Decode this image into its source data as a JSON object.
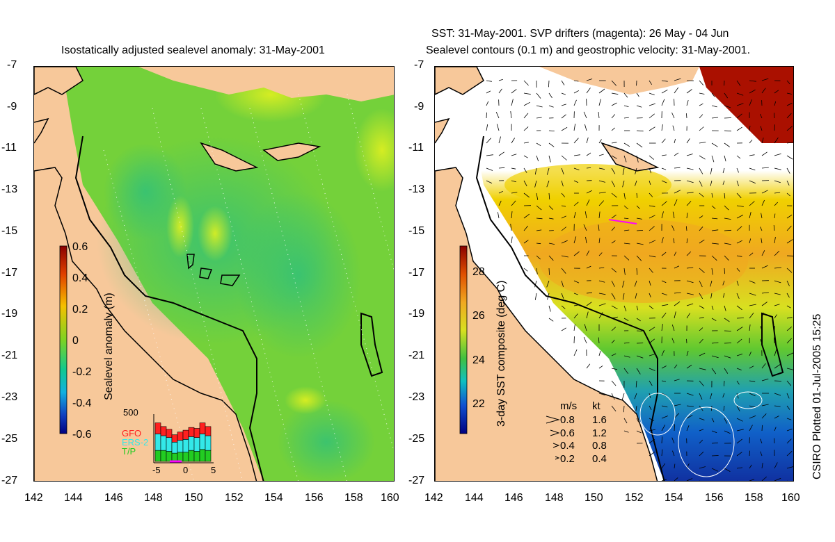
{
  "chart_data": [
    {
      "type": "heatmap",
      "title": "Isostatically adjusted sealevel anomaly: 31-May-2001",
      "xlim": [
        142,
        160
      ],
      "ylim": [
        -27,
        -7
      ],
      "xticks": [
        "142",
        "144",
        "146",
        "148",
        "150",
        "152",
        "154",
        "156",
        "158",
        "160"
      ],
      "yticks": [
        "-7",
        "-9",
        "-11",
        "-13",
        "-15",
        "-17",
        "-19",
        "-21",
        "-23",
        "-25",
        "-27"
      ],
      "colorbar": {
        "label": "Sealevel anomaly (m)",
        "range": [
          -0.6,
          0.6
        ],
        "ticks": [
          "0.6",
          "0.4",
          "0.2",
          "0",
          "-0.2",
          "-0.4",
          "-0.6"
        ]
      },
      "inset_histogram": {
        "ymax_label": "500",
        "xticks": [
          "-5",
          "0",
          "5"
        ],
        "legend": [
          {
            "name": "GFO",
            "color": "#ff2020"
          },
          {
            "name": "ERS-2",
            "color": "#33e8e8"
          },
          {
            "name": "T/P",
            "color": "#22cc22"
          }
        ],
        "bins": [
          -5,
          -4,
          -3,
          -2,
          -1,
          0,
          1,
          2,
          3,
          4
        ],
        "tp": [
          120,
          120,
          110,
          90,
          100,
          100,
          120,
          110,
          130,
          120
        ],
        "ers2": [
          180,
          160,
          150,
          120,
          130,
          140,
          150,
          150,
          170,
          160
        ],
        "gfo": [
          120,
          100,
          90,
          80,
          90,
          100,
          100,
          100,
          120,
          100
        ]
      }
    },
    {
      "type": "heatmap",
      "title_line1": "SST: 31-May-2001. SVP drifters (magenta): 26 May - 04 Jun",
      "title_line2": "Sealevel contours (0.1 m) and geostrophic velocity: 31-May-2001.",
      "xlim": [
        142,
        160
      ],
      "ylim": [
        -27,
        -7
      ],
      "xticks": [
        "142",
        "144",
        "146",
        "148",
        "150",
        "152",
        "154",
        "156",
        "158",
        "160"
      ],
      "yticks": [
        "-7",
        "-9",
        "-11",
        "-13",
        "-15",
        "-17",
        "-19",
        "-21",
        "-23",
        "-25",
        "-27"
      ],
      "colorbar": {
        "label": "3-day SST composite (deg C)",
        "range": [
          21,
          29.5
        ],
        "ticks": [
          "28",
          "26",
          "24",
          "22"
        ]
      },
      "velocity_legend": {
        "header": [
          "m/s",
          "kt"
        ],
        "rows": [
          [
            "0.8",
            "1.6"
          ],
          [
            "0.6",
            "1.2"
          ],
          [
            "0.4",
            "0.8"
          ],
          [
            "0.2",
            "0.4"
          ]
        ]
      }
    }
  ],
  "credit": "CSIRO Plotted 01-Jul-2005 15:25",
  "colors": {
    "land": "#f7c89a",
    "sla_field": "#7ed321",
    "sst_warm": "#f0a020",
    "sst_cool": "#1060c0"
  }
}
